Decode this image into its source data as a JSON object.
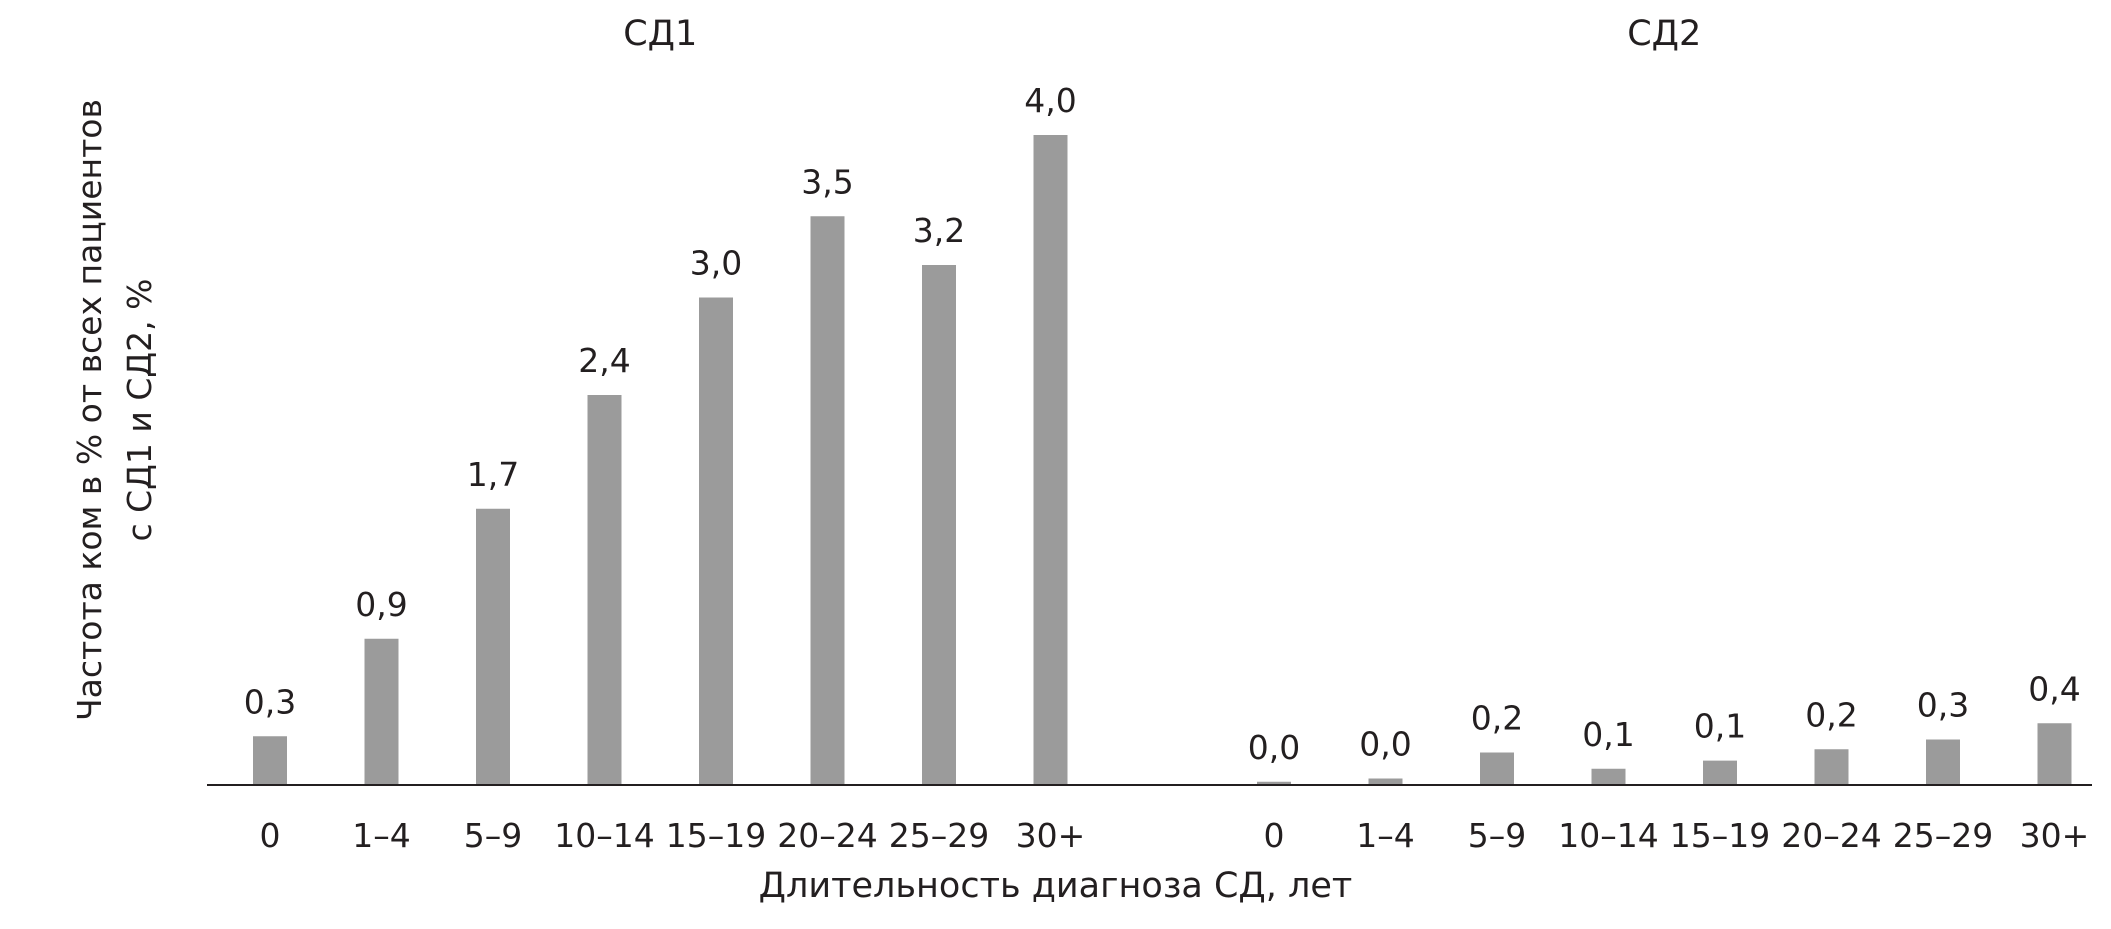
{
  "chart_data": {
    "type": "bar",
    "ylabel_lines": [
      "Частота ком в % от всех пациентов",
      "с СД1 и СД2, %"
    ],
    "xlabel": "Длительность диагноза СД, лет",
    "ylim": [
      0,
      4.0
    ],
    "grid": false,
    "legend": "none",
    "bar_color": "#9b9b9b",
    "axis_color": "#231f20",
    "categories": [
      "0",
      "1–4",
      "5–9",
      "10–14",
      "15–19",
      "20–24",
      "25–29",
      "30+"
    ],
    "groups": [
      {
        "name": "СД1",
        "values": [
          0.3,
          0.9,
          1.7,
          2.4,
          3.0,
          3.5,
          3.2,
          4.0
        ],
        "labels": [
          "0,3",
          "0,9",
          "1,7",
          "2,4",
          "3,0",
          "3,5",
          "3,2",
          "4,0"
        ]
      },
      {
        "name": "СД2",
        "values": [
          0.02,
          0.04,
          0.2,
          0.1,
          0.15,
          0.22,
          0.28,
          0.38
        ],
        "labels": [
          "0,0",
          "0,0",
          "0,2",
          "0,1",
          "0,1",
          "0,2",
          "0,3",
          "0,4"
        ]
      }
    ]
  }
}
